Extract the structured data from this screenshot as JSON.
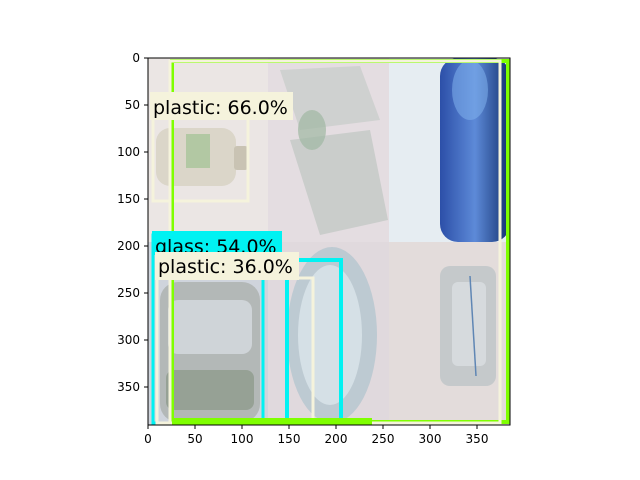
{
  "plot": {
    "x_ticks": [
      "0",
      "50",
      "100",
      "150",
      "200",
      "250",
      "300",
      "350"
    ],
    "y_ticks": [
      "0",
      "50",
      "100",
      "150",
      "200",
      "250",
      "300",
      "350"
    ],
    "xlim": [
      0,
      384
    ],
    "ylim": [
      0,
      384
    ]
  },
  "detections": [
    {
      "label": "plastic: 66.0%",
      "box_color": "#f5f3dc",
      "label_bg": "#f5f3dc"
    },
    {
      "label": "glass: 54.0%",
      "box_color": "#00f2f2",
      "label_bg": "#00f2f2"
    },
    {
      "label": "plastic: 36.0%",
      "box_color": "#f5f3dc",
      "label_bg": "#f5f3dc"
    },
    {
      "label": "",
      "box_color": "#f5f3dc",
      "label_bg": "#f5f3dc"
    },
    {
      "label": "",
      "box_color": "#00f2f2",
      "label_bg": "#00f2f2"
    },
    {
      "label": "",
      "box_color": "#7fff00",
      "label_bg": "#7fff00"
    }
  ]
}
